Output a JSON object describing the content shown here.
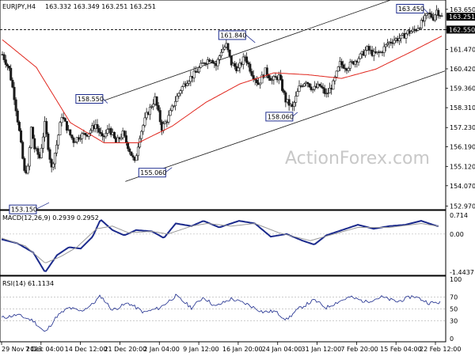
{
  "header": {
    "symbol": "EURJPY,H4",
    "ohlc": "163.332 163.349 163.251 163.251"
  },
  "watermark": "ActionForex.com",
  "colors": {
    "candle": "#1a1a1a",
    "ma": "#e0261d",
    "channel": "#1a1a1a",
    "macd_line": "#1b2a8c",
    "macd_signal": "#9a9a9a",
    "rsi_line": "#1b2a8c",
    "rsi_levels": "#9a9a9a",
    "label_border": "#1f2d8f"
  },
  "price_labels": [
    {
      "id": "label-153150",
      "text": "153.150"
    },
    {
      "id": "label-158550",
      "text": "158.550"
    },
    {
      "id": "label-155060",
      "text": "155.060"
    },
    {
      "id": "label-161840",
      "text": "161.840"
    },
    {
      "id": "label-158060",
      "text": "158.060"
    },
    {
      "id": "label-163450",
      "text": "163.450"
    }
  ],
  "right_axis": {
    "ticks": [
      "163.650",
      "162.550",
      "161.470",
      "160.420",
      "159.360",
      "158.310",
      "157.230",
      "156.190",
      "155.120",
      "154.070",
      "152.970"
    ],
    "current_price": "163.251",
    "dashed_level": "162.550"
  },
  "macd": {
    "title": "MACD(12,26,9) 0.2939 0.2952",
    "ticks": [
      "0.714",
      "0.00",
      "-1.4437"
    ]
  },
  "rsi": {
    "title": "RSI(14) 61.1134",
    "ticks": [
      "100",
      "70",
      "50",
      "30",
      "0"
    ]
  },
  "x_axis": {
    "labels": [
      "29 Nov 2023",
      "7 Dec 04:00",
      "14 Dec 12:00",
      "21 Dec 20:00",
      "2 Jan 04:00",
      "9 Jan 12:00",
      "16 Jan 20:00",
      "24 Jan 04:00",
      "31 Jan 12:00",
      "7 Feb 20:00",
      "15 Feb 04:00",
      "22 Feb 12:00"
    ]
  },
  "chart_data": [
    {
      "type": "candlestick",
      "title": "EURJPY,H4",
      "ylim": [
        152.9,
        163.9
      ],
      "x_labels": [
        "29 Nov 2023",
        "7 Dec 04:00",
        "14 Dec 12:00",
        "21 Dec 20:00",
        "2 Jan 04:00",
        "9 Jan 12:00",
        "16 Jan 20:00",
        "24 Jan 04:00",
        "31 Jan 12:00",
        "7 Feb 20:00",
        "15 Feb 04:00",
        "22 Feb 12:00"
      ],
      "close_anchors": [
        [
          0,
          161.2
        ],
        [
          8,
          160.4
        ],
        [
          14,
          158.9
        ],
        [
          20,
          157.0
        ],
        [
          26,
          154.8
        ],
        [
          30,
          155.0
        ],
        [
          34,
          157.2
        ],
        [
          38,
          156.1
        ],
        [
          44,
          155.6
        ],
        [
          50,
          157.4
        ],
        [
          58,
          155.0
        ],
        [
          64,
          156.3
        ],
        [
          70,
          157.9
        ],
        [
          78,
          157.0
        ],
        [
          84,
          156.5
        ],
        [
          92,
          156.8
        ],
        [
          100,
          156.9
        ],
        [
          110,
          157.4
        ],
        [
          118,
          156.6
        ],
        [
          126,
          157.2
        ],
        [
          134,
          156.4
        ],
        [
          142,
          156.9
        ],
        [
          150,
          156.0
        ],
        [
          156,
          155.3
        ],
        [
          162,
          156.8
        ],
        [
          170,
          157.9
        ],
        [
          180,
          158.8
        ],
        [
          188,
          157.2
        ],
        [
          196,
          157.8
        ],
        [
          202,
          158.5
        ],
        [
          210,
          159.3
        ],
        [
          218,
          159.8
        ],
        [
          228,
          160.2
        ],
        [
          238,
          160.8
        ],
        [
          246,
          161.0
        ],
        [
          252,
          160.6
        ],
        [
          258,
          161.4
        ],
        [
          264,
          161.7
        ],
        [
          270,
          160.7
        ],
        [
          278,
          160.4
        ],
        [
          286,
          161.1
        ],
        [
          294,
          160.2
        ],
        [
          302,
          159.6
        ],
        [
          310,
          160.3
        ],
        [
          318,
          159.8
        ],
        [
          326,
          160.0
        ],
        [
          334,
          158.7
        ],
        [
          342,
          158.3
        ],
        [
          350,
          159.4
        ],
        [
          358,
          159.8
        ],
        [
          366,
          159.3
        ],
        [
          374,
          159.5
        ],
        [
          382,
          159.0
        ],
        [
          390,
          159.6
        ],
        [
          398,
          160.7
        ],
        [
          406,
          160.5
        ],
        [
          414,
          160.8
        ],
        [
          422,
          161.1
        ],
        [
          430,
          161.5
        ],
        [
          438,
          161.2
        ],
        [
          446,
          161.3
        ],
        [
          454,
          161.8
        ],
        [
          462,
          162.0
        ],
        [
          470,
          162.1
        ],
        [
          478,
          162.4
        ],
        [
          486,
          162.5
        ],
        [
          494,
          162.9
        ],
        [
          502,
          163.4
        ],
        [
          508,
          163.2
        ],
        [
          512,
          163.6
        ],
        [
          518,
          163.25
        ]
      ],
      "annotated_levels": [
        153.15,
        158.55,
        155.06,
        161.84,
        158.06,
        163.45
      ],
      "moving_average_anchors": [
        [
          0,
          162.0
        ],
        [
          40,
          160.5
        ],
        [
          80,
          157.5
        ],
        [
          120,
          156.4
        ],
        [
          160,
          156.4
        ],
        [
          200,
          157.3
        ],
        [
          240,
          158.6
        ],
        [
          280,
          159.6
        ],
        [
          320,
          160.2
        ],
        [
          360,
          160.1
        ],
        [
          400,
          159.9
        ],
        [
          440,
          160.4
        ],
        [
          480,
          161.3
        ],
        [
          518,
          162.2
        ]
      ],
      "channel_upper": [
        [
          120,
          158.7
        ],
        [
          510,
          165.0
        ]
      ],
      "channel_lower": [
        [
          145,
          154.3
        ],
        [
          565,
          160.3
        ]
      ]
    },
    {
      "type": "line",
      "title": "MACD(12,26,9) 0.2939 0.2952",
      "ylim": [
        -1.4437,
        0.714
      ],
      "series": [
        {
          "name": "MACD",
          "anchors": [
            [
              0,
              -0.2
            ],
            [
              20,
              -0.35
            ],
            [
              40,
              -0.7
            ],
            [
              55,
              -1.45
            ],
            [
              70,
              -0.8
            ],
            [
              85,
              -0.5
            ],
            [
              100,
              -0.55
            ],
            [
              115,
              -0.1
            ],
            [
              125,
              0.55
            ],
            [
              140,
              0.15
            ],
            [
              155,
              -0.05
            ],
            [
              170,
              0.15
            ],
            [
              190,
              0.1
            ],
            [
              205,
              -0.15
            ],
            [
              220,
              0.4
            ],
            [
              240,
              0.3
            ],
            [
              255,
              0.5
            ],
            [
              275,
              0.25
            ],
            [
              300,
              0.5
            ],
            [
              320,
              0.4
            ],
            [
              340,
              -0.1
            ],
            [
              360,
              0.0
            ],
            [
              380,
              -0.25
            ],
            [
              395,
              -0.4
            ],
            [
              410,
              -0.05
            ],
            [
              430,
              0.15
            ],
            [
              450,
              0.35
            ],
            [
              470,
              0.2
            ],
            [
              490,
              0.3
            ],
            [
              510,
              0.35
            ],
            [
              530,
              0.5
            ],
            [
              550,
              0.3
            ]
          ]
        },
        {
          "name": "Signal",
          "anchors": [
            [
              0,
              -0.15
            ],
            [
              30,
              -0.45
            ],
            [
              55,
              -1.1
            ],
            [
              75,
              -0.85
            ],
            [
              95,
              -0.5
            ],
            [
              120,
              0.2
            ],
            [
              140,
              0.3
            ],
            [
              160,
              0.05
            ],
            [
              190,
              0.1
            ],
            [
              210,
              0.0
            ],
            [
              240,
              0.3
            ],
            [
              260,
              0.4
            ],
            [
              290,
              0.3
            ],
            [
              320,
              0.4
            ],
            [
              350,
              0.05
            ],
            [
              390,
              -0.25
            ],
            [
              420,
              0.0
            ],
            [
              450,
              0.25
            ],
            [
              490,
              0.25
            ],
            [
              530,
              0.4
            ],
            [
              550,
              0.3
            ]
          ]
        }
      ]
    },
    {
      "type": "line",
      "title": "RSI(14) 61.1134",
      "ylim": [
        0,
        100
      ],
      "levels": [
        30,
        50,
        70
      ],
      "series": [
        {
          "name": "RSI(14)",
          "anchors": [
            [
              0,
              35
            ],
            [
              20,
              40
            ],
            [
              40,
              30
            ],
            [
              55,
              10
            ],
            [
              70,
              38
            ],
            [
              85,
              52
            ],
            [
              100,
              46
            ],
            [
              115,
              58
            ],
            [
              125,
              72
            ],
            [
              140,
              48
            ],
            [
              160,
              60
            ],
            [
              180,
              44
            ],
            [
              200,
              52
            ],
            [
              220,
              72
            ],
            [
              240,
              52
            ],
            [
              255,
              70
            ],
            [
              270,
              54
            ],
            [
              290,
              67
            ],
            [
              310,
              58
            ],
            [
              330,
              45
            ],
            [
              345,
              46
            ],
            [
              360,
              32
            ],
            [
              375,
              50
            ],
            [
              395,
              65
            ],
            [
              410,
              52
            ],
            [
              425,
              62
            ],
            [
              440,
              70
            ],
            [
              460,
              62
            ],
            [
              480,
              70
            ],
            [
              500,
              62
            ],
            [
              520,
              72
            ],
            [
              540,
              60
            ],
            [
              555,
              61
            ]
          ]
        }
      ]
    }
  ]
}
